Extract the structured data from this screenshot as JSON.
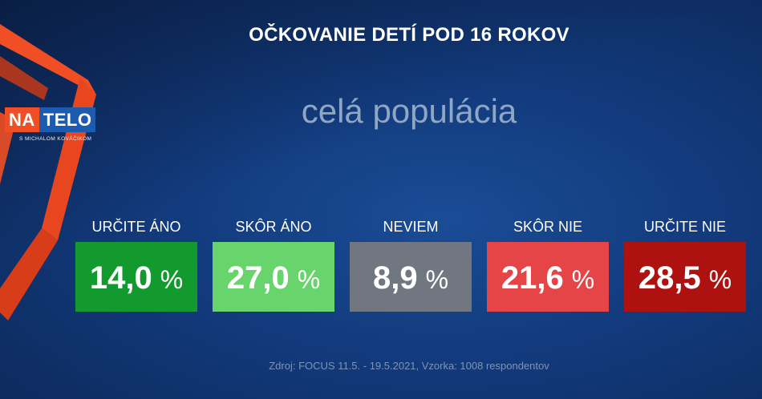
{
  "header": {
    "title": "OČKOVANIE DETÍ POD 16 ROKOV",
    "subtitle": "celá populácia"
  },
  "logo": {
    "part1": "NA",
    "part2": "TELO",
    "tagline": "S MICHALOM KOVÁČIKOM"
  },
  "colors": {
    "background": "#123a7c",
    "accent_orange": "#f04e24",
    "logo_blue": "#1d5bb1"
  },
  "chart_data": {
    "type": "bar",
    "categories": [
      "URČITE ÁNO",
      "SKÔR ÁNO",
      "NEVIEM",
      "SKÔR NIE",
      "URČITE NIE"
    ],
    "values": [
      14.0,
      27.0,
      8.9,
      21.6,
      28.5
    ],
    "value_labels": [
      "14,0",
      "27,0",
      "8,9",
      "21,6",
      "28,5"
    ],
    "unit": "%",
    "colors": [
      "#139a2e",
      "#67d46c",
      "#707780",
      "#e64547",
      "#ad1110"
    ],
    "title": "OČKOVANIE DETÍ POD 16 ROKOV",
    "subtitle": "celá populácia"
  },
  "footer": {
    "source": "Zdroj: FOCUS 11.5. - 19.5.2021, Vzorka: 1008 respondentov"
  }
}
